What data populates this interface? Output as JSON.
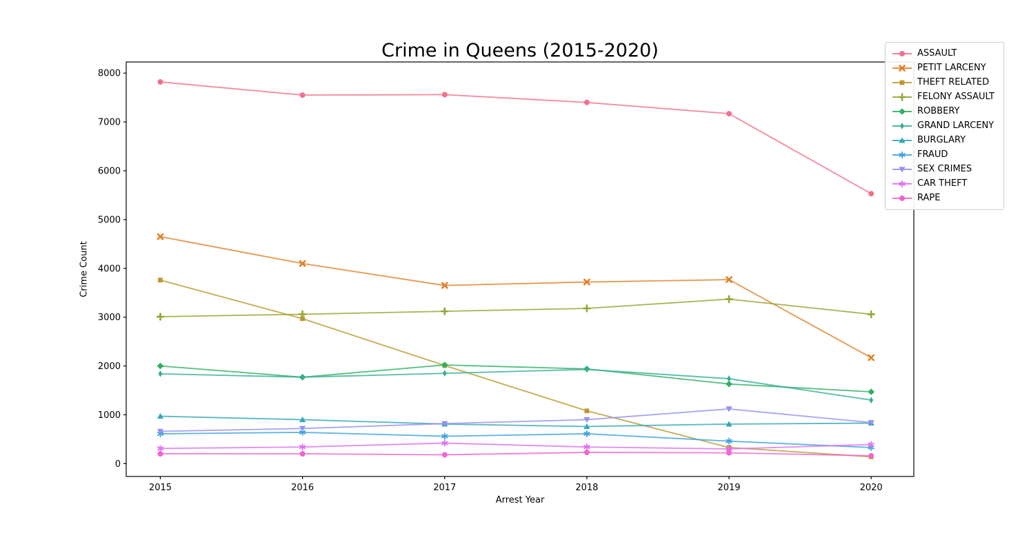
{
  "title": "Crime in Queens (2015-2020)",
  "chart_data": {
    "type": "line",
    "title": "Crime in Queens (2015-2020)",
    "xlabel": "Arrest Year",
    "ylabel": "Crime Count",
    "x": [
      2015,
      2016,
      2017,
      2018,
      2019,
      2020
    ],
    "xticks": [
      "2015",
      "2016",
      "2017",
      "2018",
      "2019",
      "2020"
    ],
    "yticks": [
      0,
      1000,
      2000,
      3000,
      4000,
      5000,
      6000,
      7000,
      8000
    ],
    "xlim": [
      2014.76,
      2020.3
    ],
    "ylim": [
      -264,
      8229
    ],
    "grid": false,
    "legend_position": "upper right",
    "axis_color": "#000000",
    "series": [
      {
        "name": "ASSAULT",
        "color": "#f4718b",
        "marker": "circle",
        "values": [
          7820,
          7550,
          7560,
          7400,
          7170,
          5530
        ]
      },
      {
        "name": "PETIT LARCENY",
        "color": "#e1812b",
        "marker": "x",
        "values": [
          4650,
          4100,
          3650,
          3720,
          3770,
          2170
        ]
      },
      {
        "name": "THEFT RELATED",
        "color": "#bb9832",
        "marker": "square",
        "values": [
          3760,
          2970,
          2010,
          1080,
          330,
          140
        ]
      },
      {
        "name": "FELONY ASSAULT",
        "color": "#97a431",
        "marker": "plus",
        "values": [
          3010,
          3060,
          3120,
          3180,
          3370,
          3060
        ]
      },
      {
        "name": "ROBBERY",
        "color": "#2fb062",
        "marker": "diamond",
        "values": [
          2000,
          1770,
          2020,
          1940,
          1630,
          1470
        ]
      },
      {
        "name": "GRAND LARCENY",
        "color": "#35ae93",
        "marker": "thin-diamond",
        "values": [
          1840,
          1770,
          1850,
          1930,
          1740,
          1300
        ]
      },
      {
        "name": "BURGLARY",
        "color": "#36a8b5",
        "marker": "triangle-up",
        "values": [
          970,
          900,
          810,
          760,
          810,
          830
        ]
      },
      {
        "name": "FRAUD",
        "color": "#3ba3dc",
        "marker": "star",
        "values": [
          610,
          640,
          560,
          610,
          460,
          330
        ]
      },
      {
        "name": "SEX CRIMES",
        "color": "#9491f4",
        "marker": "triangle-down",
        "values": [
          660,
          720,
          820,
          900,
          1120,
          840
        ]
      },
      {
        "name": "CAR THEFT",
        "color": "#dd70f0",
        "marker": "star",
        "values": [
          310,
          340,
          420,
          340,
          300,
          390
        ]
      },
      {
        "name": "RAPE",
        "color": "#f465cc",
        "marker": "circle",
        "values": [
          200,
          200,
          180,
          230,
          220,
          160
        ]
      }
    ]
  }
}
